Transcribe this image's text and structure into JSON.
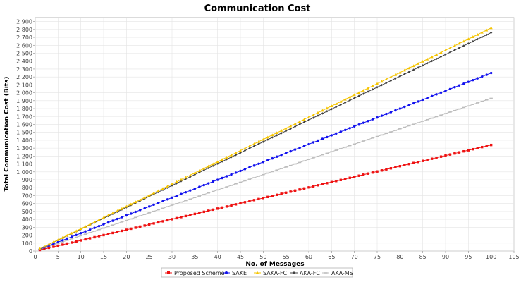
{
  "chart_data": {
    "type": "line",
    "title": "Communication Cost",
    "xlabel": "No. of Messages",
    "ylabel": "Total Communication Cost (Bits)",
    "xlim": [
      0,
      105
    ],
    "ylim": [
      0,
      2950
    ],
    "xticks": [
      0,
      5,
      10,
      15,
      20,
      25,
      30,
      35,
      40,
      45,
      50,
      55,
      60,
      65,
      70,
      75,
      80,
      85,
      90,
      95,
      100,
      105
    ],
    "yticks": [
      0,
      100,
      200,
      300,
      400,
      500,
      600,
      700,
      800,
      900,
      1000,
      1100,
      1200,
      1300,
      1400,
      1500,
      1600,
      1700,
      1800,
      1900,
      2000,
      2100,
      2200,
      2300,
      2400,
      2500,
      2600,
      2700,
      2800,
      2900
    ],
    "xtick_labels": [
      "0",
      "5",
      "10",
      "15",
      "20",
      "25",
      "30",
      "35",
      "40",
      "45",
      "50",
      "55",
      "60",
      "65",
      "70",
      "75",
      "80",
      "85",
      "90",
      "95",
      "100",
      "105"
    ],
    "ytick_labels": [
      "0",
      "100",
      "200",
      "300",
      "400",
      "500",
      "600",
      "700",
      "800",
      "900",
      "1 000",
      "1 100",
      "1 200",
      "1 300",
      "1 400",
      "1 500",
      "1 600",
      "1 700",
      "1 800",
      "1 900",
      "2 000",
      "2 100",
      "2 200",
      "2 300",
      "2 400",
      "2 500",
      "2 600",
      "2 700",
      "2 800",
      "2 900"
    ],
    "grid": true,
    "legend_position": "bottom-center",
    "x_range": {
      "start": 1,
      "end": 100,
      "step": 1
    },
    "series": [
      {
        "name": "Proposed Scheme",
        "color": "#ee1111",
        "marker": "square",
        "per_message": 13.4
      },
      {
        "name": "SAKE",
        "color": "#1111ee",
        "marker": "circle",
        "per_message": 22.5
      },
      {
        "name": "SAKA-FC",
        "color": "#f5c400",
        "marker": "triangle",
        "per_message": 28.2
      },
      {
        "name": "AKA-FC",
        "color": "#404040",
        "marker": "diamond",
        "per_message": 27.6
      },
      {
        "name": "AKA-MS",
        "color": "#bcbcbc",
        "marker": "dash",
        "per_message": 19.3
      }
    ]
  }
}
